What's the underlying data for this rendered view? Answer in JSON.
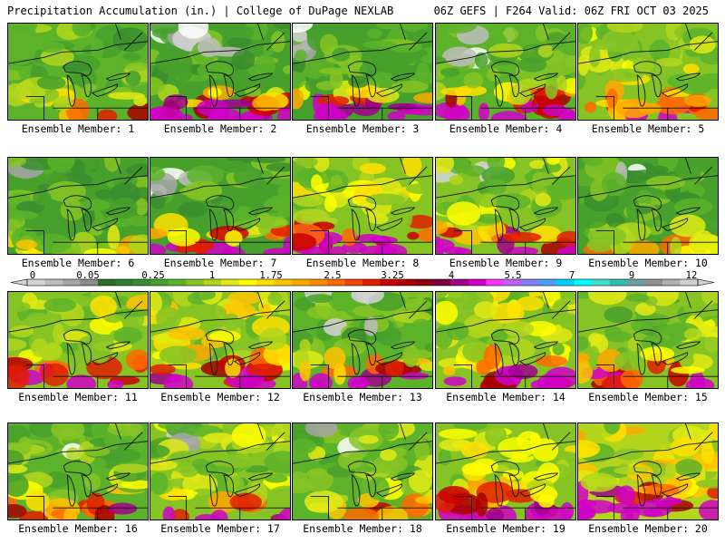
{
  "header": {
    "left": "Precipitation Accumulation (in.) | College of DuPage NEXLAB",
    "right": "06Z GEFS | F264 Valid: 06Z FRI OCT 03 2025"
  },
  "colorbar": {
    "tick_labels": [
      "0",
      "0.05",
      "0.25",
      "1",
      "1.75",
      "2.5",
      "3.25",
      "4",
      "5.5",
      "7",
      "9",
      "12"
    ],
    "colors": [
      "#d4d4d4",
      "#bdbdbd",
      "#a6a6a6",
      "#8c8c8c",
      "#2a6e2a",
      "#2f7f2f",
      "#3a8d2e",
      "#47a02c",
      "#5cb32a",
      "#86c425",
      "#b3d61d",
      "#e2ea15",
      "#ffff00",
      "#ffe000",
      "#ffc400",
      "#ffa800",
      "#ff8a00",
      "#ff6a00",
      "#f24400",
      "#e01e00",
      "#c80000",
      "#a80000",
      "#8c0010",
      "#780040",
      "#a0008c",
      "#d000c8",
      "#ff33ff",
      "#c060ff",
      "#8080ff",
      "#4aa0ff",
      "#00d0ff",
      "#00ffff",
      "#40e0d0",
      "#30c0b0",
      "#70a0a0",
      "#909090",
      "#b0b0b0",
      "#d0d0d0"
    ]
  },
  "panel_label_prefix": "Ensemble Member: ",
  "members": [
    {
      "label": "Ensemble Member: 1"
    },
    {
      "label": "Ensemble Member: 2"
    },
    {
      "label": "Ensemble Member: 3"
    },
    {
      "label": "Ensemble Member: 4"
    },
    {
      "label": "Ensemble Member: 5"
    },
    {
      "label": "Ensemble Member: 6"
    },
    {
      "label": "Ensemble Member: 7"
    },
    {
      "label": "Ensemble Member: 8"
    },
    {
      "label": "Ensemble Member: 9"
    },
    {
      "label": "Ensemble Member: 10"
    },
    {
      "label": "Ensemble Member: 11"
    },
    {
      "label": "Ensemble Member: 12"
    },
    {
      "label": "Ensemble Member: 13"
    },
    {
      "label": "Ensemble Member: 14"
    },
    {
      "label": "Ensemble Member: 15"
    },
    {
      "label": "Ensemble Member: 16"
    },
    {
      "label": "Ensemble Member: 17"
    },
    {
      "label": "Ensemble Member: 18"
    },
    {
      "label": "Ensemble Member: 19"
    },
    {
      "label": "Ensemble Member: 20"
    }
  ]
}
